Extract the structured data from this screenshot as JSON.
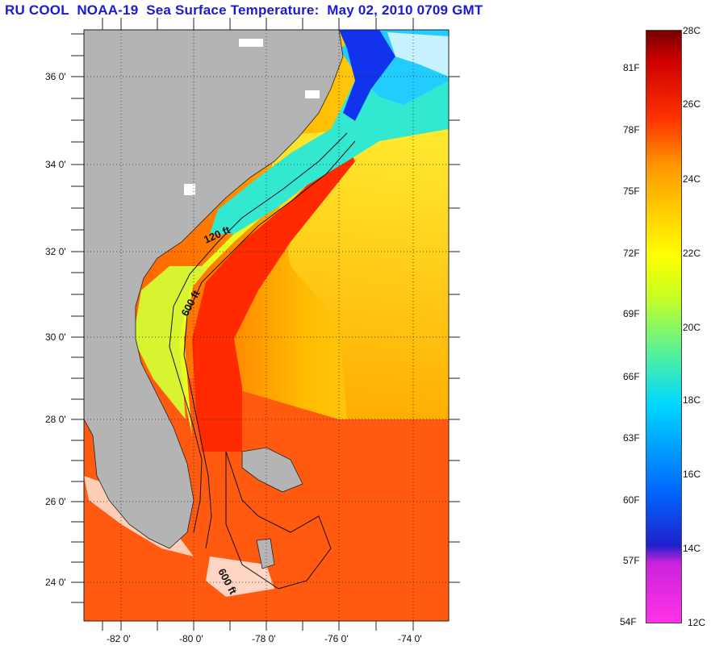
{
  "title": "RU COOL  NOAA-19  Sea Surface Temperature:  May 02, 2010 0709 GMT",
  "map": {
    "lat_labels": [
      "36 0'",
      "34 0'",
      "32 0'",
      "30 0'",
      "28 0'",
      "26 0'",
      "24 0'"
    ],
    "lon_labels": [
      "-82 0'",
      "-80 0'",
      "-78 0'",
      "-76 0'",
      "-74 0'"
    ],
    "contour_labels": [
      "120 ft",
      "600 ft",
      "600 ft"
    ],
    "colors": {
      "land": "#b4b4b4",
      "gulf_stream": "#ff2a00",
      "cool_shelf": "#22ddff",
      "cold_water": "#1144ee",
      "warm_open": "#ffcc00"
    }
  },
  "scale": {
    "fahrenheit": [
      "81F",
      "78F",
      "75F",
      "72F",
      "69F",
      "66F",
      "63F",
      "60F",
      "57F",
      "54F"
    ],
    "celsius": [
      "28C",
      "26C",
      "24C",
      "22C",
      "20C",
      "18C",
      "16C",
      "14C",
      "12C"
    ]
  }
}
